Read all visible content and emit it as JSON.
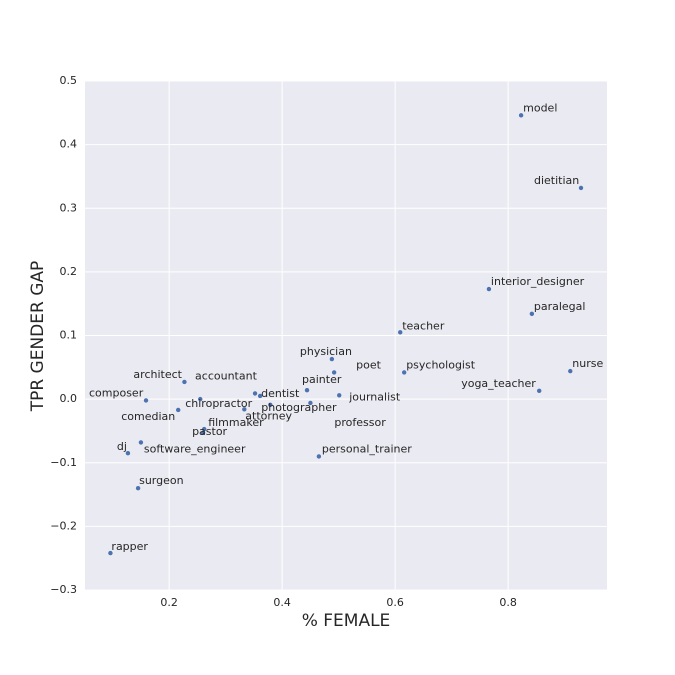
{
  "chart_data": {
    "type": "scatter",
    "xlabel": "% FEMALE",
    "ylabel": "TPR GENDER GAP",
    "xlim": [
      0.051,
      0.975
    ],
    "ylim": [
      -0.3,
      0.5
    ],
    "xticks": [
      0.2,
      0.4,
      0.6,
      0.8
    ],
    "yticks": [
      {
        "value": -0.3,
        "label": "−0.3"
      },
      {
        "value": -0.2,
        "label": "−0.2"
      },
      {
        "value": -0.1,
        "label": "−0.1"
      },
      {
        "value": 0,
        "label": "0.0"
      },
      0.1,
      0.2,
      0.3,
      0.4,
      0.5
    ],
    "grid": true,
    "color": "#4c72b0",
    "labels": [
      "model",
      "dietitian",
      "interior_designer",
      "paralegal",
      "teacher",
      "nurse",
      "yoga_teacher",
      "psychologist",
      "physician",
      "poet",
      "painter",
      "journalist",
      "professor",
      "photographer",
      "attorney",
      "dentist",
      "accountant",
      "chiropractor",
      "architect",
      "composer",
      "comedian",
      "filmmaker",
      "pastor",
      "software_engineer",
      "dj",
      "personal_trainer",
      "surgeon",
      "rapper"
    ],
    "x": [
      0.823,
      0.929,
      0.766,
      0.842,
      0.609,
      0.91,
      0.855,
      0.616,
      0.488,
      0.492,
      0.444,
      0.501,
      0.45,
      0.379,
      0.333,
      0.361,
      0.352,
      0.255,
      0.227,
      0.159,
      0.216,
      0.262,
      0.26,
      0.15,
      0.127,
      0.465,
      0.145,
      0.096
    ],
    "y": [
      0.446,
      0.332,
      0.173,
      0.134,
      0.105,
      0.044,
      0.013,
      0.042,
      0.063,
      0.042,
      0.014,
      0.006,
      -0.006,
      -0.009,
      -0.016,
      0.005,
      0.009,
      0.0,
      0.027,
      -0.002,
      -0.017,
      -0.047,
      -0.053,
      -0.068,
      -0.085,
      -0.09,
      -0.14,
      -0.242
    ]
  }
}
